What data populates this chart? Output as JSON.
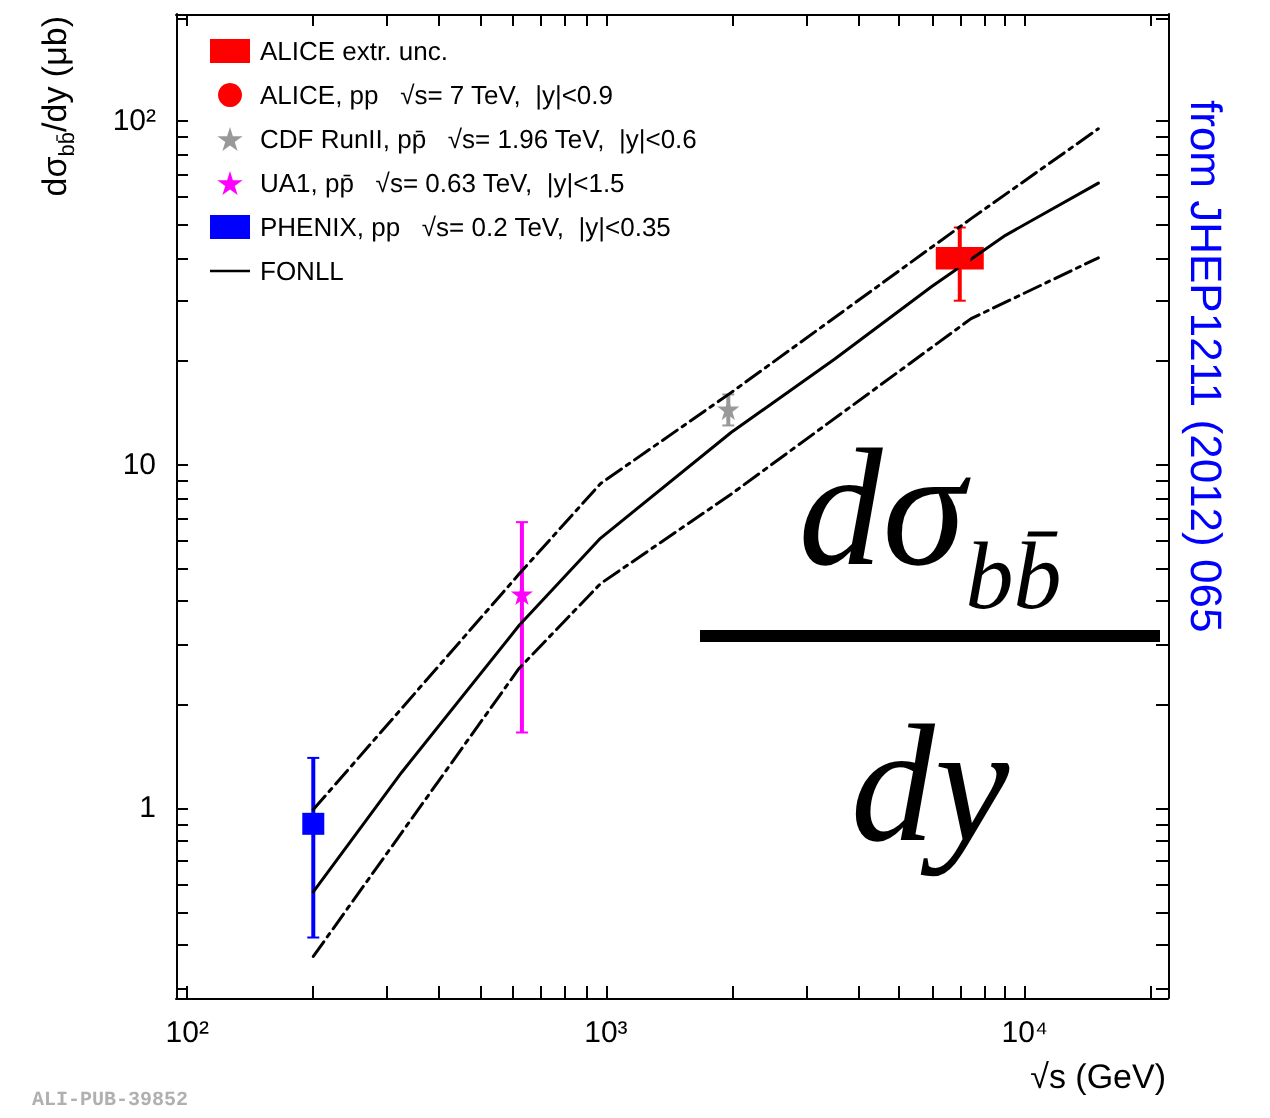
{
  "chart_data": {
    "type": "scatter",
    "xlabel": "√s (GeV)",
    "ylabel": "dσ$_{bb̄}$/dy (μb)",
    "log": "xy",
    "grid": false,
    "legend": "top left",
    "xlim": [
      94,
      22000
    ],
    "xticks": [
      {
        "value": 100,
        "label": "10²"
      },
      {
        "value": 1000,
        "label": "10³"
      },
      {
        "value": 10000,
        "label": "10⁴"
      }
    ],
    "ylim": [
      0.28,
      205
    ],
    "yticks": [
      1,
      10,
      {
        "value": 100,
        "label": "10²"
      }
    ],
    "series": [
      {
        "name": "ALICE extr. unc.",
        "type": "bar",
        "color": "#ff0000",
        "x": [
          7000
        ],
        "base": [
          37
        ],
        "values": [
          6
        ]
      },
      {
        "name": "ALICE, pp   √s= 7 TeV,  |y|<0.9",
        "marker": "circle",
        "color": "#ff0000",
        "x": [
          7000
        ],
        "values": [
          40
        ],
        "errors": [
          [
            30,
            49
          ]
        ]
      },
      {
        "name": "CDF RunII, pp̄   √s= 1.96 TeV,  |y|<0.6",
        "marker": "star",
        "color": "#999999",
        "x": [
          1960
        ],
        "values": [
          14.5
        ],
        "errors": [
          [
            13,
            16
          ]
        ]
      },
      {
        "name": "UA1, pp̄   √s= 0.63 TeV,  |y|<1.5",
        "marker": "star",
        "color": "#ff00ff",
        "x": [
          630
        ],
        "values": [
          4.2
        ],
        "errors": [
          [
            1.66,
            6.8
          ]
        ]
      },
      {
        "name": "PHENIX, pp   √s= 0.2 TeV,  |y|<0.35",
        "marker": "square",
        "color": "#0000ff",
        "x": [
          200
        ],
        "values": [
          0.9
        ],
        "errors": [
          [
            0.42,
            1.4
          ]
        ]
      },
      {
        "name": "FONLL",
        "type": "line",
        "line_style": "solid",
        "color": "#000000",
        "x": [
          200,
          325,
          620,
          970,
          1990,
          3520,
          6000,
          9000,
          15000
        ],
        "values": [
          0.57,
          1.27,
          3.4,
          6.1,
          12.4,
          20.3,
          33,
          46.5,
          66
        ]
      },
      {
        "type": "line",
        "line_style": "dashed",
        "color": "#000000",
        "x": [
          200,
          620,
          970,
          1990,
          7450,
          15000
        ],
        "values": [
          0.99,
          4.8,
          8.8,
          16.2,
          52,
          95
        ]
      },
      {
        "type": "line",
        "line_style": "dashed",
        "color": "#000000",
        "x": [
          200,
          620,
          970,
          1990,
          7450,
          15000
        ],
        "values": [
          0.37,
          2.55,
          4.5,
          8.2,
          26.6,
          40
        ]
      }
    ],
    "annotations": [
      "dσ$_{bb̄}$",
      "dy",
      "from JHEP1211 (2012) 065",
      "ALI-PUB-39852"
    ]
  }
}
